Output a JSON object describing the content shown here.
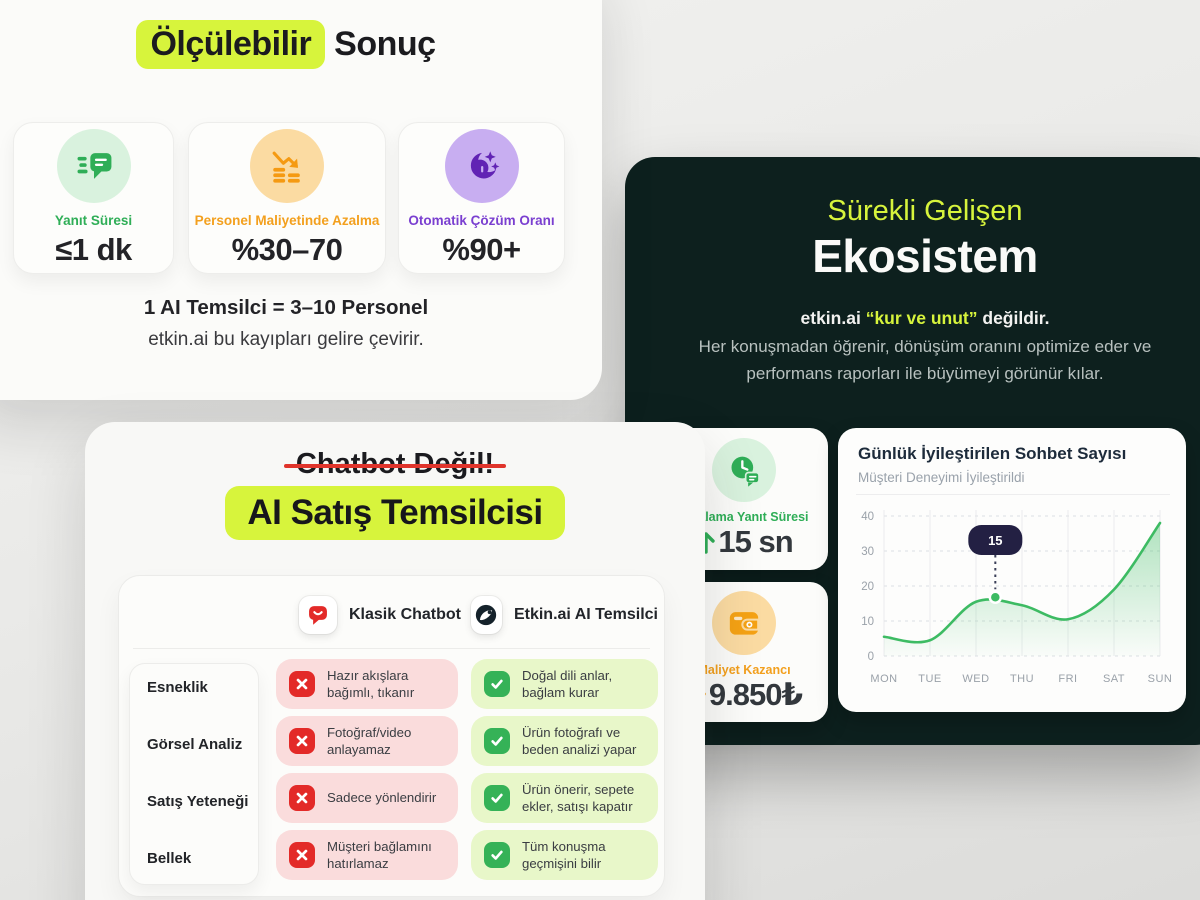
{
  "colors": {
    "lime_highlight": "#d7f43c",
    "green": "#2fae57",
    "orange": "#f3a01e",
    "purple": "#7a3fd0",
    "red": "#e32a28",
    "dark_card_bg": "#0d201e",
    "tooltip_bg": "#232043",
    "chart_line": "#3dbb63"
  },
  "results_card": {
    "title_highlight": "Ölçülebilir",
    "title_rest": " Sonuç",
    "stats": [
      {
        "label": "Yanıt Süresi",
        "value": "≤1 dk"
      },
      {
        "label": "Personel Maliyetinde Azalma",
        "value": "%30–70"
      },
      {
        "label": "Otomatik Çözüm Oranı",
        "value": "%90+"
      }
    ],
    "footnote_bold": "1 AI Temsilci = 3–10 Personel",
    "footnote": "etkin.ai bu kayıpları gelire çevirir."
  },
  "ecosystem_card": {
    "title_line1": "Sürekli Gelişen",
    "title_line2": "Ekosistem",
    "lead_prefix": "etkin.ai ",
    "lead_highlight": "“kur ve unut”",
    "lead_suffix": " değildir.",
    "desc_line1": "Her konuşmadan öğrenir, dönüşüm oranını optimize eder ve",
    "desc_line2": "performans raporları ile büyümeyi görünür kılar.",
    "stats": [
      {
        "label": "Ortalama Yanıt Süresi",
        "arrow": "↑",
        "value": "15 sn"
      },
      {
        "label": "Maliyet Kazancı",
        "arrow": "↑",
        "value": "9.850₺"
      }
    ]
  },
  "chart_data": {
    "type": "area",
    "title": "Günlük İyileştirilen Sohbet Sayısı",
    "subtitle": "Müşteri Deneyimi İyileştirildi",
    "x": [
      "MON",
      "TUE",
      "WED",
      "THU",
      "FRI",
      "SAT",
      "SUN"
    ],
    "values": [
      5.5,
      4.5,
      15.5,
      14.5,
      10.5,
      19,
      38
    ],
    "yticks": [
      0,
      10,
      20,
      30,
      40
    ],
    "ylim": [
      0,
      40
    ],
    "xlabel": "",
    "ylabel": "",
    "grid": "dashed horizontal, light vertical",
    "legend": false,
    "tooltip": {
      "label": "15",
      "day_x": 2.42,
      "value": 16.8
    }
  },
  "comparison_card": {
    "strikethrough_title": "Chatbot Değil!",
    "highlight_title": "AI Satış Temsilcisi",
    "col1_header": "Klasik Chatbot",
    "col2_header": "Etkin.ai AI Temsilci",
    "rows": [
      {
        "label": "Esneklik",
        "con": "Hazır akışlara bağımlı, tıkanır",
        "pro": "Doğal dili anlar, bağlam kurar"
      },
      {
        "label": "Görsel Analiz",
        "con": "Fotoğraf/video anlayamaz",
        "pro": "Ürün fotoğrafı ve beden analizi yapar"
      },
      {
        "label": "Satış Yeteneği",
        "con": "Sadece yönlendirir",
        "pro": "Ürün önerir, sepete ekler, satışı kapatır"
      },
      {
        "label": "Bellek",
        "con": "Müşteri bağlamını hatırlamaz",
        "pro": "Tüm konuşma geçmişini bilir"
      }
    ]
  }
}
